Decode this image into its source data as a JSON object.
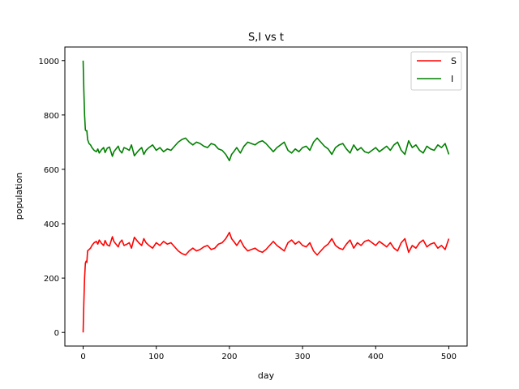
{
  "chart_data": {
    "type": "line",
    "title": "S,I vs t",
    "xlabel": "day",
    "ylabel": "population",
    "xlim": [
      -25,
      525
    ],
    "ylim": [
      -50,
      1050
    ],
    "xticks": [
      0,
      100,
      200,
      300,
      400,
      500
    ],
    "yticks": [
      0,
      200,
      400,
      600,
      800,
      1000
    ],
    "grid": false,
    "legend_position": "top-right",
    "series": [
      {
        "name": "S",
        "color": "#ff0000",
        "x": [
          0,
          1,
          2,
          3,
          4,
          5,
          6,
          8,
          10,
          12,
          15,
          18,
          20,
          22,
          25,
          28,
          30,
          33,
          36,
          40,
          42,
          45,
          48,
          50,
          53,
          56,
          60,
          63,
          66,
          70,
          73,
          76,
          80,
          83,
          86,
          90,
          95,
          100,
          105,
          110,
          115,
          120,
          125,
          130,
          135,
          140,
          145,
          150,
          155,
          160,
          165,
          170,
          175,
          180,
          185,
          190,
          195,
          200,
          203,
          206,
          210,
          215,
          220,
          225,
          230,
          235,
          240,
          245,
          250,
          255,
          260,
          265,
          270,
          275,
          280,
          285,
          290,
          295,
          300,
          305,
          310,
          315,
          320,
          325,
          330,
          335,
          340,
          345,
          350,
          355,
          360,
          365,
          370,
          375,
          380,
          385,
          390,
          395,
          400,
          405,
          410,
          415,
          420,
          425,
          430,
          435,
          440,
          445,
          450,
          455,
          460,
          465,
          470,
          475,
          480,
          485,
          490,
          495,
          500
        ],
        "values": [
          0,
          110,
          200,
          255,
          262,
          258,
          300,
          305,
          310,
          320,
          330,
          335,
          325,
          340,
          328,
          320,
          338,
          322,
          318,
          352,
          335,
          325,
          315,
          330,
          340,
          320,
          325,
          330,
          310,
          350,
          340,
          330,
          320,
          345,
          330,
          320,
          310,
          330,
          320,
          335,
          325,
          330,
          315,
          300,
          290,
          285,
          300,
          310,
          300,
          305,
          315,
          320,
          305,
          310,
          325,
          330,
          345,
          368,
          345,
          335,
          320,
          340,
          315,
          300,
          305,
          310,
          300,
          295,
          305,
          320,
          335,
          320,
          310,
          300,
          330,
          340,
          325,
          335,
          320,
          315,
          330,
          300,
          285,
          300,
          315,
          325,
          345,
          320,
          310,
          305,
          325,
          340,
          310,
          330,
          320,
          335,
          340,
          330,
          320,
          335,
          325,
          315,
          330,
          310,
          300,
          330,
          345,
          295,
          320,
          310,
          330,
          340,
          315,
          325,
          330,
          310,
          320,
          305,
          345
        ]
      },
      {
        "name": "I",
        "color": "#008000",
        "x": [
          0,
          1,
          2,
          3,
          4,
          5,
          6,
          8,
          10,
          12,
          15,
          18,
          20,
          22,
          25,
          28,
          30,
          33,
          36,
          40,
          42,
          45,
          48,
          50,
          53,
          56,
          60,
          63,
          66,
          70,
          73,
          76,
          80,
          83,
          86,
          90,
          95,
          100,
          105,
          110,
          115,
          120,
          125,
          130,
          135,
          140,
          145,
          150,
          155,
          160,
          165,
          170,
          175,
          180,
          185,
          190,
          195,
          200,
          203,
          206,
          210,
          215,
          220,
          225,
          230,
          235,
          240,
          245,
          250,
          255,
          260,
          265,
          270,
          275,
          280,
          285,
          290,
          295,
          300,
          305,
          310,
          315,
          320,
          325,
          330,
          335,
          340,
          345,
          350,
          355,
          360,
          365,
          370,
          375,
          380,
          385,
          390,
          395,
          400,
          405,
          410,
          415,
          420,
          425,
          430,
          435,
          440,
          445,
          450,
          455,
          460,
          465,
          470,
          475,
          480,
          485,
          490,
          495,
          500
        ],
        "values": [
          1000,
          890,
          800,
          745,
          742,
          742,
          710,
          695,
          690,
          680,
          670,
          665,
          675,
          660,
          672,
          680,
          662,
          678,
          682,
          648,
          665,
          675,
          685,
          670,
          660,
          680,
          675,
          670,
          690,
          650,
          660,
          670,
          680,
          655,
          670,
          680,
          690,
          670,
          680,
          665,
          675,
          670,
          685,
          700,
          710,
          715,
          700,
          690,
          700,
          695,
          685,
          680,
          695,
          690,
          675,
          670,
          655,
          632,
          655,
          665,
          680,
          660,
          685,
          700,
          695,
          690,
          700,
          705,
          695,
          680,
          665,
          680,
          690,
          700,
          670,
          660,
          675,
          665,
          680,
          685,
          670,
          700,
          715,
          700,
          685,
          675,
          655,
          680,
          690,
          695,
          675,
          660,
          690,
          670,
          680,
          665,
          660,
          670,
          680,
          665,
          675,
          685,
          670,
          690,
          700,
          670,
          655,
          705,
          680,
          690,
          670,
          660,
          685,
          675,
          670,
          690,
          680,
          695,
          655
        ]
      }
    ]
  }
}
